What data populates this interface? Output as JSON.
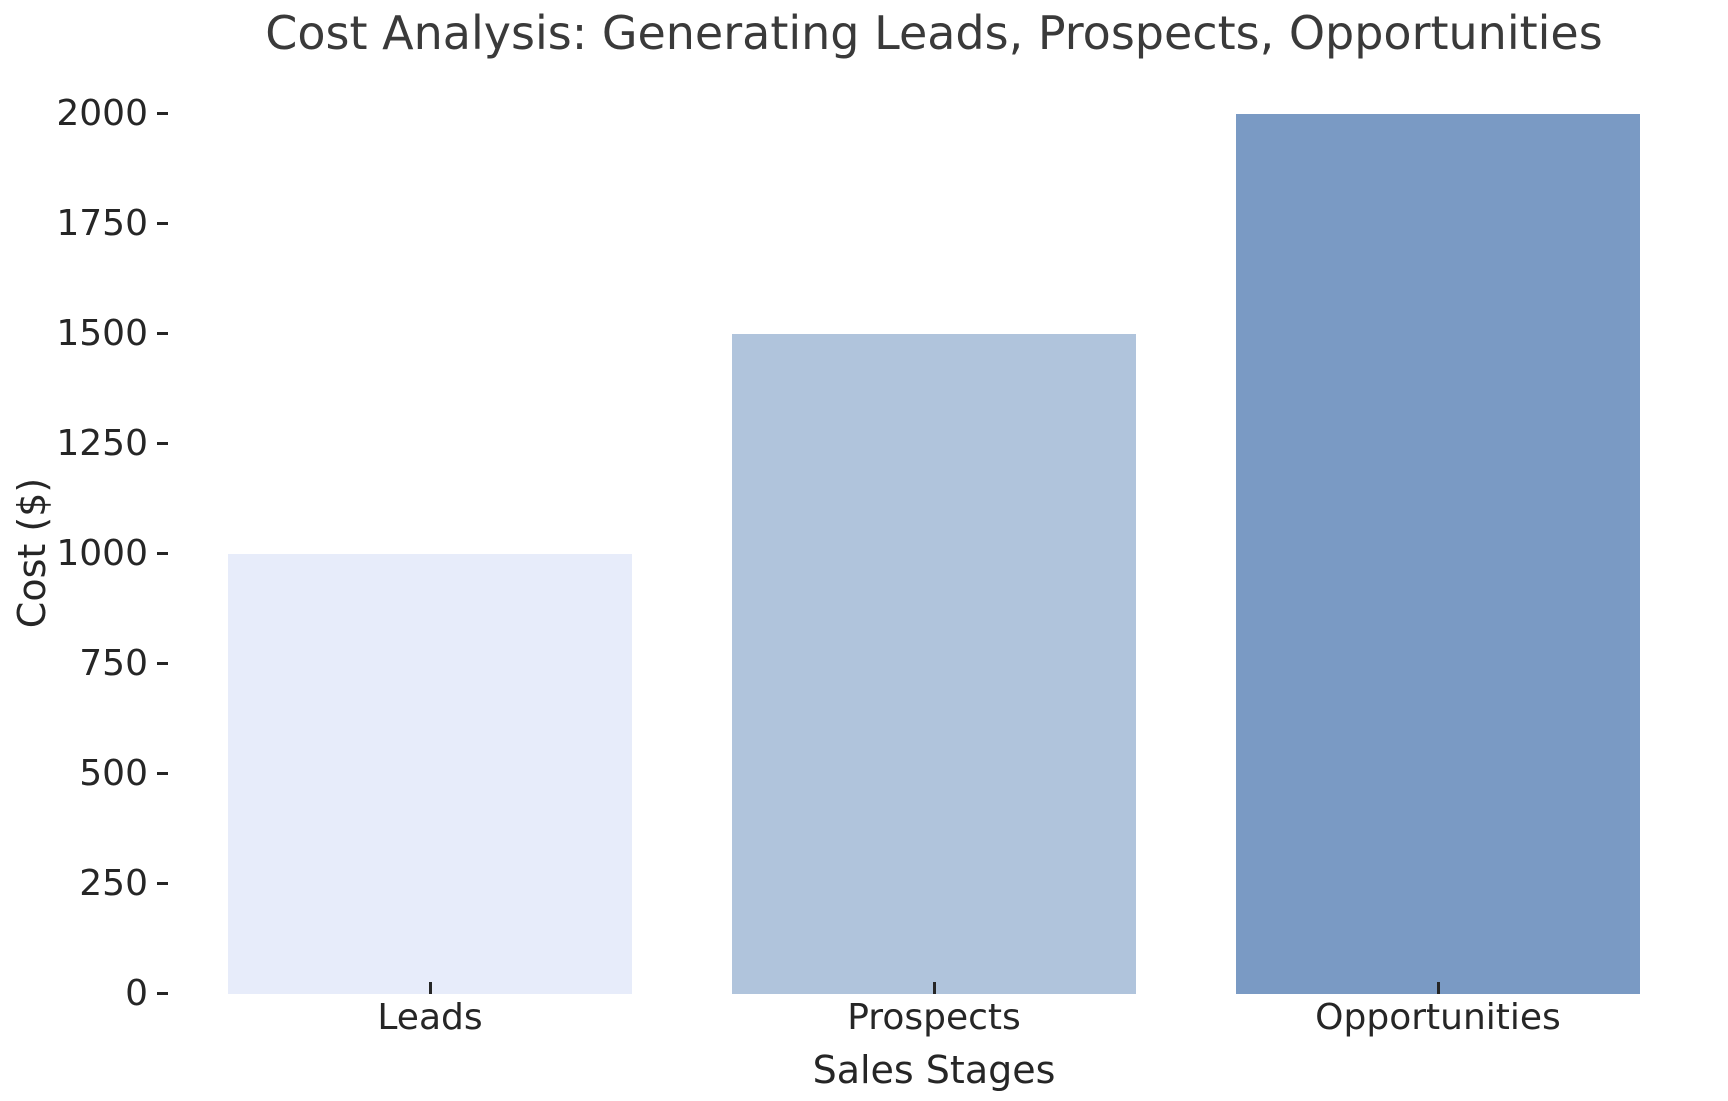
{
  "figure": {
    "title": "Cost Analysis: Generating Leads, Prospects, Opportunities",
    "background_color": "#ffffff",
    "title_color": "#3a3a3a",
    "text_color": "#262626"
  },
  "chart_data": {
    "type": "bar",
    "title": "Cost Analysis: Generating Leads, Prospects, Opportunities",
    "categories": [
      "Leads",
      "Prospects",
      "Opportunities"
    ],
    "values": [
      1000,
      1500,
      2000
    ],
    "bar_colors": [
      "#e7ecfa",
      "#b0c4dc",
      "#7a9ac4"
    ],
    "xlabel": "Sales Stages",
    "ylabel": "Cost ($)",
    "ylim": [
      0,
      2000
    ],
    "yticks": [
      0,
      250,
      500,
      750,
      1000,
      1250,
      1500,
      1750,
      2000
    ],
    "grid": false,
    "legend": "none",
    "bar_relative_width": 0.8
  }
}
